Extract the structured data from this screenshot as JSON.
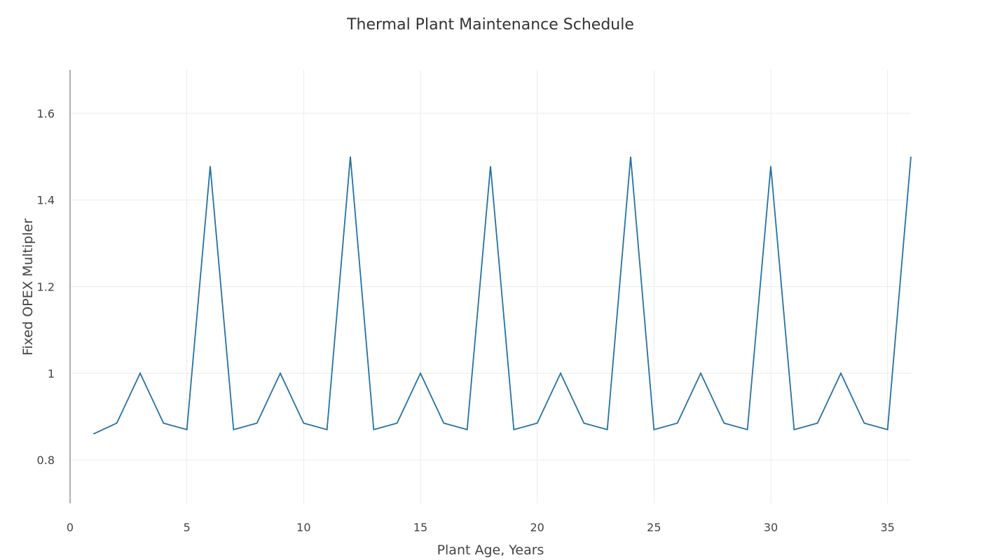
{
  "chart_data": {
    "type": "line",
    "title": "Thermal Plant Maintenance Schedule",
    "xlabel": "Plant Age, Years",
    "ylabel": "Fixed OPEX Multipler",
    "xlim": [
      0,
      36
    ],
    "ylim": [
      0.7,
      1.7
    ],
    "x_ticks": [
      0,
      5,
      10,
      15,
      20,
      25,
      30,
      35
    ],
    "y_ticks": [
      0.8,
      1,
      1.2,
      1.4,
      1.6
    ],
    "x_tick_labels": [
      "0",
      "5",
      "10",
      "15",
      "20",
      "25",
      "30",
      "35"
    ],
    "y_tick_labels": [
      "0.8",
      "1",
      "1.2",
      "1.4",
      "1.6"
    ],
    "grid": true,
    "series": [
      {
        "color": "#2471a3",
        "x": [
          1,
          2,
          3,
          4,
          5,
          6,
          7,
          8,
          9,
          10,
          11,
          12,
          13,
          14,
          15,
          16,
          17,
          18,
          19,
          20,
          21,
          22,
          23,
          24,
          25,
          26,
          27,
          28,
          29,
          30,
          31,
          32,
          33,
          34,
          35,
          36
        ],
        "y": [
          0.86,
          0.885,
          1.0,
          0.885,
          0.87,
          1.478,
          0.87,
          0.885,
          1.0,
          0.885,
          0.87,
          1.5,
          0.87,
          0.885,
          1.0,
          0.885,
          0.87,
          1.478,
          0.87,
          0.885,
          1.0,
          0.885,
          0.87,
          1.5,
          0.87,
          0.885,
          1.0,
          0.885,
          0.87,
          1.478,
          0.87,
          0.885,
          1.0,
          0.885,
          0.87,
          1.5
        ]
      }
    ]
  }
}
